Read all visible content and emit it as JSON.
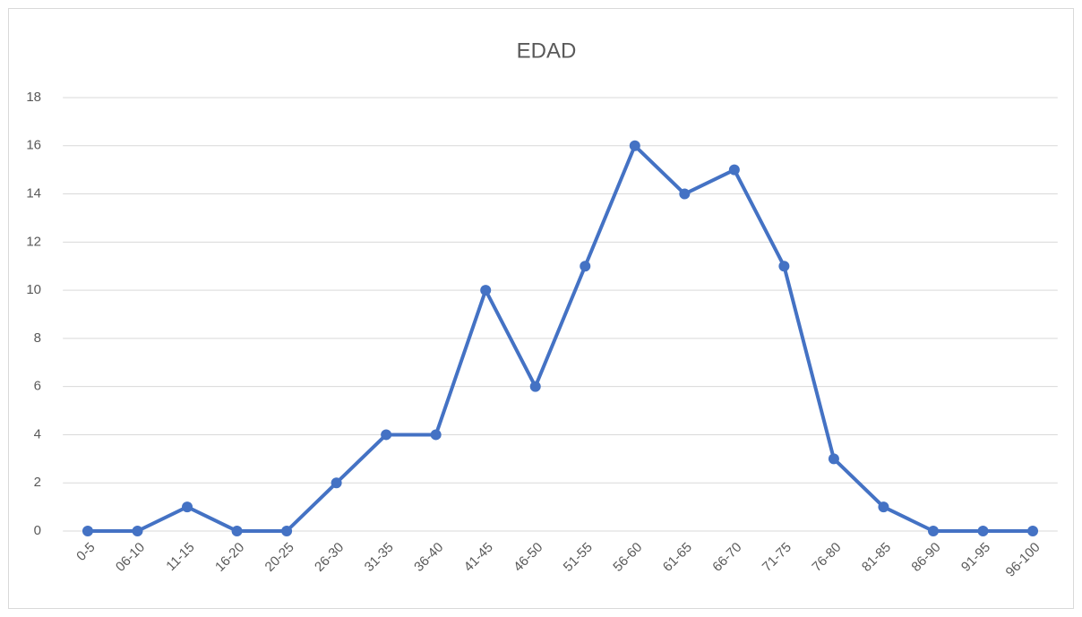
{
  "chart_data": {
    "type": "line",
    "title": "EDAD",
    "categories": [
      "0-5",
      "06-10",
      "11-15",
      "16-20",
      "20-25",
      "26-30",
      "31-35",
      "36-40",
      "41-45",
      "46-50",
      "51-55",
      "56-60",
      "61-65",
      "66-70",
      "71-75",
      "76-80",
      "81-85",
      "86-90",
      "91-95",
      "96-100"
    ],
    "values": [
      0,
      0,
      1,
      0,
      0,
      2,
      4,
      4,
      10,
      6,
      11,
      16,
      14,
      15,
      11,
      3,
      1,
      0,
      0,
      0
    ],
    "color": "#4472c4",
    "ylim": [
      0,
      18
    ],
    "yticks": [
      0,
      2,
      4,
      6,
      8,
      10,
      12,
      14,
      16,
      18
    ],
    "grid": true
  }
}
